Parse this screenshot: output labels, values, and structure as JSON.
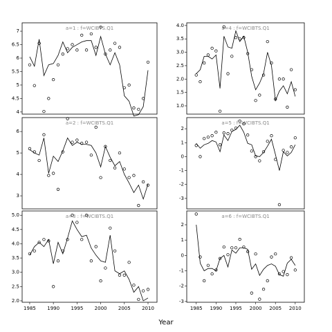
{
  "xlabel": "Year",
  "chart_data": [
    {
      "type": "line",
      "title": "a=1 : f=WCIBTS.Q1",
      "x": [
        1985,
        1986,
        1987,
        1988,
        1989,
        1990,
        1991,
        1992,
        1993,
        1994,
        1995,
        1996,
        1997,
        1998,
        1999,
        2000,
        2001,
        2002,
        2003,
        2004,
        2005,
        2006,
        2007,
        2008,
        2009,
        2010
      ],
      "xlim": [
        1983.4,
        2011.9
      ],
      "ylim": [
        3.92,
        7.31
      ],
      "yticks": [
        4.0,
        4.5,
        5.0,
        5.5,
        6.0,
        6.5,
        7.0
      ],
      "yticks_labels_note": null,
      "series": [
        {
          "style": "points",
          "color": "#000000",
          "values": [
            5.75,
            4.98,
            6.55,
            4.02,
            4.5,
            5.2,
            5.75,
            6.15,
            6.35,
            6.5,
            6.3,
            6.85,
            6.3,
            6.9,
            6.4,
            7.15,
            6.15,
            6.3,
            6.55,
            6.4,
            4.9,
            5.0,
            4.15,
            4.1,
            4.5,
            5.85
          ]
        },
        {
          "style": "line",
          "color": "#000000",
          "values": [
            6.05,
            5.7,
            6.7,
            5.35,
            5.75,
            5.8,
            6.1,
            6.6,
            6.2,
            6.4,
            6.5,
            6.6,
            6.65,
            6.65,
            6.1,
            6.8,
            6.15,
            5.75,
            6.2,
            5.75,
            4.6,
            4.4,
            3.85,
            3.9,
            4.2,
            5.55
          ]
        }
      ]
    },
    {
      "type": "line",
      "title": "a=2 : f=WCIBTS.Q1",
      "x": [
        1985,
        1986,
        1987,
        1988,
        1989,
        1990,
        1991,
        1992,
        1993,
        1994,
        1995,
        1996,
        1997,
        1998,
        1999,
        2000,
        2001,
        2002,
        2003,
        2004,
        2005,
        2006,
        2007,
        2008,
        2009,
        2010
      ],
      "xlim": [
        1983.4,
        2011.9
      ],
      "ylim": [
        2.39,
        6.65
      ],
      "yticks": [
        3,
        4,
        5,
        6
      ],
      "series": [
        {
          "style": "points",
          "color": "#000000",
          "values": [
            5.2,
            5.05,
            4.65,
            5.85,
            3.95,
            4.05,
            3.3,
            5.05,
            6.6,
            5.5,
            5.6,
            5.45,
            5.5,
            4.9,
            6.2,
            3.85,
            5.3,
            4.65,
            4.3,
            5.0,
            4.25,
            3.85,
            3.95,
            2.55,
            3.65,
            3.5
          ]
        },
        {
          "style": "line",
          "color": "#000000",
          "values": [
            5.15,
            5.0,
            4.9,
            5.7,
            4.05,
            4.85,
            4.6,
            5.1,
            5.7,
            5.35,
            5.5,
            5.4,
            5.4,
            5.35,
            5.0,
            4.35,
            5.3,
            4.8,
            4.4,
            4.6,
            4.0,
            3.6,
            3.15,
            3.5,
            2.85,
            3.55
          ]
        }
      ]
    },
    {
      "type": "line",
      "title": "a=3 : f=WCIBTS.Q1",
      "x": [
        1985,
        1986,
        1987,
        1988,
        1989,
        1990,
        1991,
        1992,
        1993,
        1994,
        1995,
        1996,
        1997,
        1998,
        1999,
        2000,
        2001,
        2002,
        2003,
        2004,
        2005,
        2006,
        2007,
        2008,
        2009,
        2010
      ],
      "xlim": [
        1983.4,
        2011.9
      ],
      "ylim": [
        1.95,
        5.15
      ],
      "xticks": [
        1985,
        1990,
        1995,
        2000,
        2005,
        2010
      ],
      "yticks": [
        {
          "value": 2.0,
          "label": "2.0"
        },
        2.5,
        {
          "value": 3.0,
          "label": "3.0"
        },
        3.5,
        {
          "value": 4.0,
          "label": "4.0"
        },
        4.5,
        {
          "value": 5.0,
          "label": "5.0"
        }
      ],
      "series": [
        {
          "style": "points",
          "color": "#000000",
          "values": [
            3.65,
            3.75,
            4.05,
            4.15,
            4.1,
            2.5,
            3.4,
            3.75,
            4.15,
            5.0,
            4.75,
            4.15,
            5.0,
            3.4,
            3.9,
            2.7,
            3.15,
            4.55,
            3.75,
            2.9,
            2.9,
            3.35,
            2.55,
            2.05,
            2.35,
            2.4
          ]
        },
        {
          "style": "line",
          "color": "#000000",
          "values": [
            3.6,
            3.9,
            4.05,
            3.9,
            4.15,
            3.3,
            4.05,
            3.65,
            4.2,
            4.8,
            4.5,
            4.25,
            4.3,
            3.85,
            3.6,
            3.4,
            3.35,
            4.3,
            3.05,
            2.95,
            3.05,
            2.75,
            2.3,
            2.5,
            2.0,
            2.1
          ]
        }
      ]
    },
    {
      "type": "line",
      "title": "a=4 : f=WCIBTS.Q1",
      "x": [
        1985,
        1986,
        1987,
        1988,
        1989,
        1990,
        1991,
        1992,
        1993,
        1994,
        1995,
        1996,
        1997,
        1998,
        1999,
        2000,
        2001,
        2002,
        2003,
        2004,
        2005,
        2006,
        2007,
        2008,
        2009,
        2010
      ],
      "xlim": [
        1982.6,
        2012.3
      ],
      "ylim": [
        0.69,
        4.1
      ],
      "yticks": [
        {
          "value": 1.0,
          "label": "1.0"
        },
        1.5,
        {
          "value": 2.0,
          "label": "2.0"
        },
        2.5,
        {
          "value": 3.0,
          "label": "3.0"
        },
        3.5,
        {
          "value": 4.0,
          "label": "4.0"
        }
      ],
      "series": [
        {
          "style": "points",
          "color": "#000000",
          "values": [
            2.15,
            1.9,
            2.6,
            2.9,
            3.15,
            3.05,
            0.8,
            3.95,
            2.2,
            2.85,
            3.55,
            3.5,
            3.55,
            2.95,
            2.35,
            1.2,
            1.4,
            2.15,
            3.4,
            2.6,
            1.25,
            2.0,
            2.0,
            0.95,
            2.35,
            1.6
          ]
        },
        {
          "style": "line",
          "color": "#000000",
          "values": [
            2.2,
            2.35,
            2.85,
            2.85,
            2.75,
            2.9,
            1.65,
            3.6,
            3.2,
            3.15,
            3.8,
            3.4,
            3.6,
            3.0,
            2.1,
            1.6,
            1.85,
            2.2,
            3.0,
            2.5,
            1.2,
            1.55,
            1.75,
            1.45,
            1.9,
            1.35
          ]
        }
      ]
    },
    {
      "type": "line",
      "title": "a=5 : f=WCIBTS.Q1",
      "x": [
        1985,
        1986,
        1987,
        1988,
        1989,
        1990,
        1991,
        1992,
        1993,
        1994,
        1995,
        1996,
        1997,
        1998,
        1999,
        2000,
        2001,
        2002,
        2003,
        2004,
        2005,
        2006,
        2007,
        2008,
        2009,
        2010
      ],
      "xlim": [
        1982.6,
        2012.3
      ],
      "ylim": [
        -3.75,
        2.8
      ],
      "yticks": [
        -3,
        -2,
        -1,
        0,
        1,
        2
      ],
      "series": [
        {
          "style": "points",
          "color": "#000000",
          "values": [
            0.8,
            0.0,
            1.3,
            1.4,
            1.5,
            1.75,
            0.85,
            1.7,
            1.65,
            1.9,
            2.05,
            2.55,
            2.35,
            1.55,
            0.4,
            0.0,
            -0.3,
            0.35,
            1.1,
            1.5,
            -0.2,
            -3.45,
            0.45,
            0.3,
            0.7,
            1.35
          ]
        },
        {
          "style": "line",
          "color": "#000000",
          "values": [
            0.95,
            0.6,
            0.85,
            0.95,
            1.15,
            1.05,
            0.35,
            1.55,
            1.15,
            1.8,
            1.95,
            2.25,
            1.75,
            0.95,
            0.85,
            0.05,
            0.0,
            0.3,
            0.75,
            1.25,
            0.15,
            -1.0,
            0.35,
            0.05,
            0.3,
            0.85
          ]
        }
      ]
    },
    {
      "type": "line",
      "title": "a=6 : f=WCIBTS.Q1",
      "x": [
        1985,
        1986,
        1987,
        1988,
        1989,
        1990,
        1991,
        1992,
        1993,
        1994,
        1995,
        1996,
        1997,
        1998,
        1999,
        2000,
        2001,
        2002,
        2003,
        2004,
        2005,
        2006,
        2007,
        2008,
        2009,
        2010
      ],
      "xlim": [
        1982.6,
        2012.3
      ],
      "ylim": [
        -3.05,
        2.9
      ],
      "xticks": [
        1985,
        1990,
        1995,
        2000,
        2005,
        2010
      ],
      "yticks": [
        -3,
        -2,
        -1,
        0,
        1,
        2
      ],
      "series": [
        {
          "style": "points",
          "color": "#000000",
          "values": [
            2.7,
            -0.1,
            -1.65,
            -0.65,
            -1.2,
            -0.95,
            -0.2,
            0.55,
            0.05,
            0.5,
            0.5,
            1.05,
            0.55,
            0.25,
            -2.45,
            0.1,
            -2.85,
            -2.2,
            -1.65,
            -0.1,
            0.1,
            -1.2,
            -1.05,
            -1.25,
            -0.15,
            -0.95
          ]
        },
        {
          "style": "line",
          "color": "#000000",
          "values": [
            2.0,
            -0.5,
            -1.0,
            -0.85,
            -0.85,
            -1.0,
            -0.2,
            0.0,
            -0.75,
            0.35,
            0.15,
            0.5,
            0.5,
            0.4,
            -0.9,
            -0.55,
            -1.3,
            -0.9,
            -0.65,
            -0.55,
            -0.7,
            -1.25,
            -1.35,
            -0.5,
            -0.25,
            -0.65
          ]
        }
      ]
    }
  ]
}
